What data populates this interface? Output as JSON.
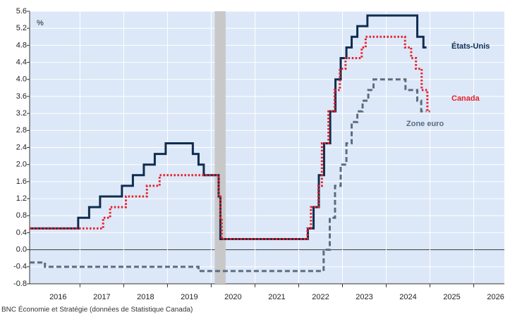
{
  "chart_data": {
    "type": "line",
    "unit_label": "%",
    "source": "BNC Économie et Stratégie (données de Statistique Canada)",
    "xlim": [
      2015.85,
      2026.7
    ],
    "xticks": [
      {
        "value": 2016.5,
        "label": "2016"
      },
      {
        "value": 2017.5,
        "label": "2017"
      },
      {
        "value": 2018.5,
        "label": "2018"
      },
      {
        "value": 2019.5,
        "label": "2019"
      },
      {
        "value": 2020.5,
        "label": "2020"
      },
      {
        "value": 2021.5,
        "label": "2021"
      },
      {
        "value": 2022.5,
        "label": "2022"
      },
      {
        "value": 2023.5,
        "label": "2023"
      },
      {
        "value": 2024.5,
        "label": "2024"
      },
      {
        "value": 2025.5,
        "label": "2025"
      },
      {
        "value": 2026.5,
        "label": "2026"
      }
    ],
    "ylim": [
      -0.8,
      5.6
    ],
    "yticks": [
      {
        "value": -0.8,
        "label": "-0.8"
      },
      {
        "value": -0.4,
        "label": "-0.4"
      },
      {
        "value": 0,
        "label": "0.0"
      },
      {
        "value": 0.4,
        "label": "0.4"
      },
      {
        "value": 0.8,
        "label": "0.8"
      },
      {
        "value": 1.2,
        "label": "1.2"
      },
      {
        "value": 1.6,
        "label": "1.6"
      },
      {
        "value": 2,
        "label": "2.0"
      },
      {
        "value": 2.4,
        "label": "2.4"
      },
      {
        "value": 2.8,
        "label": "2.8"
      },
      {
        "value": 3.2,
        "label": "3.2"
      },
      {
        "value": 3.6,
        "label": "3.6"
      },
      {
        "value": 4,
        "label": "4.0"
      },
      {
        "value": 4.4,
        "label": "4.4"
      },
      {
        "value": 4.8,
        "label": "4.8"
      },
      {
        "value": 5.2,
        "label": "5.2"
      },
      {
        "value": 5.6,
        "label": "5.6"
      }
    ],
    "grid": true,
    "step": true,
    "shaded_periods": [
      [
        2020.08,
        2020.33
      ]
    ],
    "series": [
      {
        "name": "États-Unis",
        "color": "#0f2d4f",
        "style": "solid",
        "x": [
          2015.85,
          2016.96,
          2017.21,
          2017.46,
          2017.96,
          2018.21,
          2018.46,
          2018.71,
          2018.96,
          2019.58,
          2019.71,
          2019.83,
          2020.17,
          2020.21,
          2022.21,
          2022.34,
          2022.46,
          2022.58,
          2022.72,
          2022.84,
          2022.96,
          2023.09,
          2023.21,
          2023.34,
          2023.57,
          2024.71,
          2024.85,
          2024.92
        ],
        "values": [
          0.5,
          0.75,
          1.0,
          1.25,
          1.5,
          1.75,
          2.0,
          2.25,
          2.5,
          2.25,
          2.0,
          1.75,
          1.25,
          0.25,
          0.5,
          1.0,
          1.75,
          2.5,
          3.25,
          4.0,
          4.5,
          4.75,
          5.0,
          5.25,
          5.5,
          5.0,
          4.75,
          4.75
        ]
      },
      {
        "name": "Canada",
        "color": "#e8202a",
        "style": "dotted",
        "x": [
          2015.85,
          2017.53,
          2017.69,
          2018.05,
          2018.53,
          2018.82,
          2020.17,
          2020.21,
          2020.24,
          2022.2,
          2022.28,
          2022.45,
          2022.53,
          2022.68,
          2022.82,
          2022.94,
          2023.07,
          2023.44,
          2023.53,
          2024.43,
          2024.57,
          2024.68,
          2024.81,
          2024.94,
          2025.0
        ],
        "values": [
          0.5,
          0.75,
          1.0,
          1.25,
          1.5,
          1.75,
          1.25,
          0.75,
          0.25,
          0.5,
          1.0,
          1.5,
          2.5,
          3.25,
          3.75,
          4.25,
          4.5,
          4.75,
          5.0,
          4.75,
          4.5,
          4.25,
          3.75,
          3.25,
          3.25
        ]
      },
      {
        "name": "Zone euro",
        "color": "#5b6c80",
        "style": "dashed",
        "x": [
          2015.85,
          2016.2,
          2019.71,
          2022.57,
          2022.71,
          2022.83,
          2022.96,
          2023.09,
          2023.21,
          2023.34,
          2023.46,
          2023.59,
          2023.71,
          2024.44,
          2024.71,
          2024.8,
          2024.92
        ],
        "values": [
          -0.3,
          -0.4,
          -0.5,
          0.0,
          0.75,
          1.5,
          2.0,
          2.5,
          3.0,
          3.25,
          3.5,
          3.75,
          4.0,
          3.75,
          3.5,
          3.25,
          3.25
        ]
      }
    ]
  }
}
